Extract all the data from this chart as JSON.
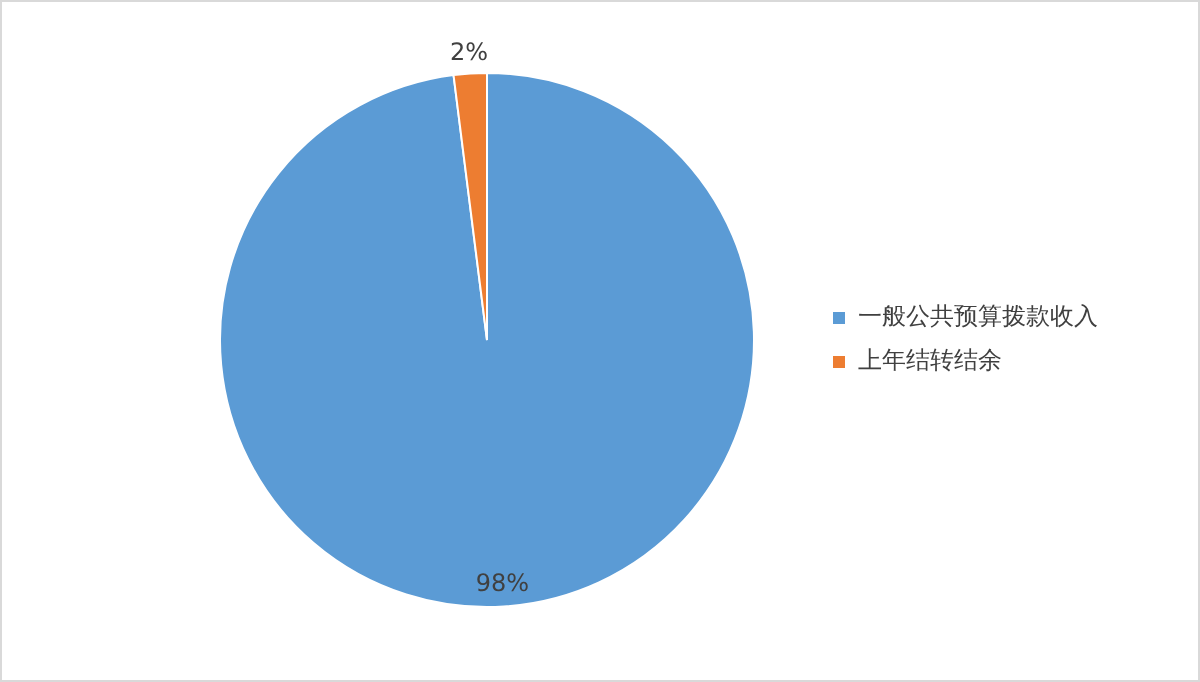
{
  "chart_data": {
    "type": "pie",
    "categories": [
      "一般公共预算拨款收入",
      "上年结转结余"
    ],
    "values": [
      98,
      2
    ],
    "colors": [
      "#5b9bd5",
      "#ed7d31"
    ],
    "value_labels": [
      "98%",
      "2%"
    ],
    "legend": "right"
  }
}
